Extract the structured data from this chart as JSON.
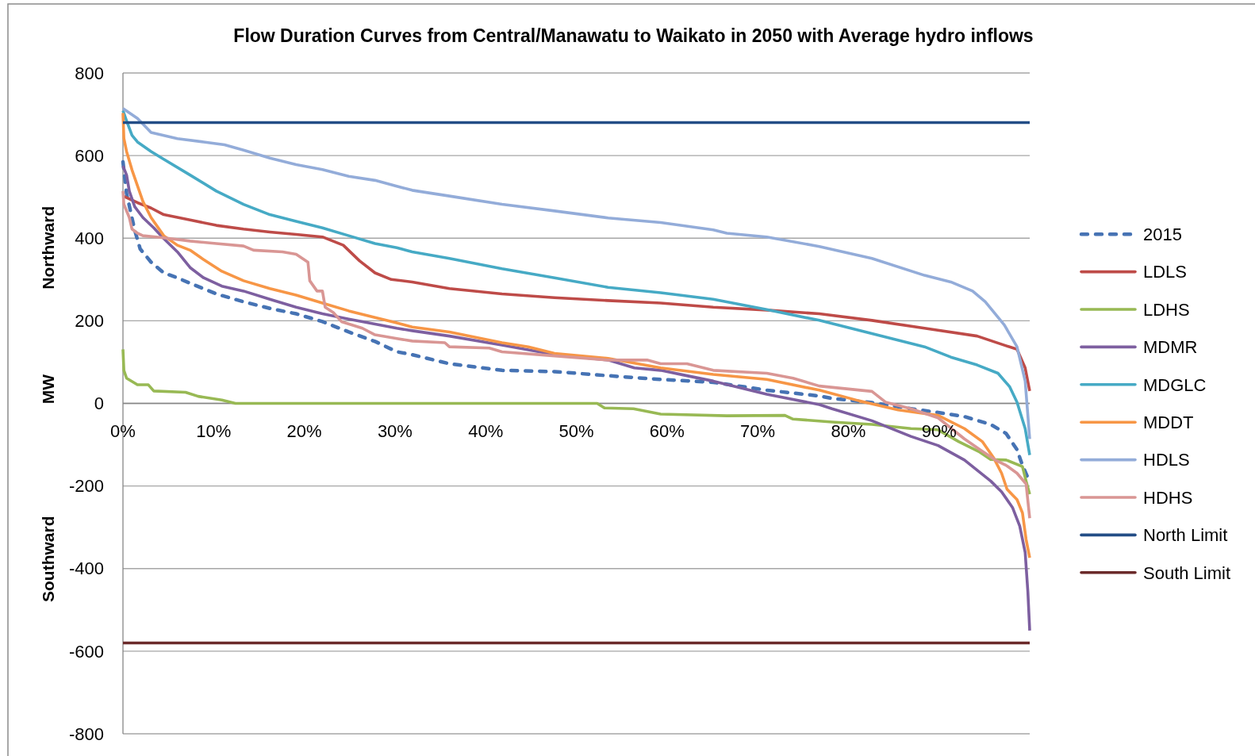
{
  "chart_data": {
    "type": "line",
    "title": "Flow Duration Curves from Central/Manawatu to Waikato in 2050 with Average hydro inflows",
    "ylabel": "MW",
    "annotations": [
      "Northward",
      "Southward"
    ],
    "xlim": [
      0,
      100
    ],
    "xticks": [
      {
        "value": 0,
        "label": "0%"
      },
      {
        "value": 10,
        "label": "10%"
      },
      {
        "value": 20,
        "label": "20%"
      },
      {
        "value": 30,
        "label": "30%"
      },
      {
        "value": 40,
        "label": "40%"
      },
      {
        "value": 50,
        "label": "50%"
      },
      {
        "value": 60,
        "label": "60%"
      },
      {
        "value": 70,
        "label": "70%"
      },
      {
        "value": 80,
        "label": "80%"
      },
      {
        "value": 90,
        "label": "90%"
      }
    ],
    "ylim": [
      -800,
      800
    ],
    "yticks": [
      -800,
      -600,
      -400,
      -200,
      0,
      200,
      400,
      600,
      800
    ],
    "grid": "y",
    "legend": "right",
    "series": [
      {
        "name": "2015",
        "color": "#4673b4",
        "line_style": "dashed",
        "x": [
          0,
          0.4,
          1.3,
          1.9,
          3.1,
          4.5,
          6,
          7.4,
          10.3,
          13.3,
          16.2,
          19.1,
          22,
          24.9,
          27.8,
          30.2,
          31.9,
          36,
          41.8,
          47.6,
          53.5,
          59.3,
          65.1,
          71,
          76.8,
          78.2,
          82.6,
          86.9,
          89.9,
          92.8,
          95.7,
          97.4,
          98.6,
          99.2,
          100
        ],
        "values": [
          585,
          508,
          419,
          374,
          342,
          316,
          304,
          291,
          265,
          246,
          230,
          217,
          198,
          173,
          150,
          125,
          118,
          96,
          80,
          77,
          67,
          58,
          51,
          32,
          18,
          12,
          2,
          -13,
          -22,
          -32,
          -51,
          -73,
          -112,
          -150,
          -190
        ]
      },
      {
        "name": "LDLS",
        "color": "#be4b48",
        "line_style": "solid",
        "x": [
          0,
          0.4,
          1.6,
          3.1,
          4.5,
          7.4,
          10.3,
          13.3,
          16.2,
          19.1,
          22,
          24.3,
          26.1,
          27.8,
          29.6,
          31.9,
          36,
          41.8,
          47.6,
          53.5,
          59.3,
          65.1,
          71,
          76.8,
          82.6,
          88.4,
          94.2,
          97.2,
          98.6,
          99.5,
          100
        ],
        "values": [
          502,
          498,
          486,
          473,
          457,
          444,
          431,
          422,
          415,
          409,
          403,
          383,
          345,
          316,
          300,
          294,
          278,
          265,
          256,
          249,
          243,
          233,
          226,
          217,
          201,
          182,
          163,
          141,
          131,
          86,
          30
        ]
      },
      {
        "name": "LDHS",
        "color": "#98b954",
        "line_style": "solid",
        "x": [
          0,
          0.1,
          0.4,
          1.6,
          2.8,
          3.4,
          6.9,
          8.3,
          10.9,
          12.4,
          52.3,
          53.1,
          56.3,
          59.3,
          66.6,
          73,
          73.9,
          78.2,
          82.6,
          86.9,
          89.9,
          92.2,
          94.5,
          95.7,
          97.4,
          99.2,
          99.6,
          100
        ],
        "values": [
          131,
          80,
          61,
          45,
          45,
          30,
          27,
          17,
          8,
          0,
          0,
          -11,
          -13,
          -26,
          -30,
          -29,
          -38,
          -45,
          -51,
          -61,
          -64,
          -93,
          -118,
          -136,
          -137,
          -153,
          -188,
          -220
        ]
      },
      {
        "name": "MDMR",
        "color": "#7d5fa0",
        "line_style": "solid",
        "x": [
          0,
          0.4,
          0.7,
          1.3,
          2.2,
          3.4,
          4.5,
          6,
          7.4,
          8.9,
          10.9,
          13.3,
          16.2,
          19.1,
          22,
          24.9,
          27.8,
          30.2,
          31.9,
          36,
          41.8,
          47.6,
          53.5,
          56.4,
          59.3,
          62.2,
          65.1,
          71,
          76.8,
          78.2,
          82.6,
          86.9,
          89.9,
          92.8,
          95.7,
          96.9,
          98.1,
          98.9,
          99.5,
          99.8,
          100
        ],
        "values": [
          575,
          553,
          514,
          476,
          450,
          425,
          399,
          367,
          329,
          304,
          284,
          272,
          252,
          233,
          217,
          204,
          192,
          182,
          176,
          163,
          141,
          118,
          105,
          86,
          80,
          67,
          54,
          22,
          -3,
          -13,
          -42,
          -80,
          -102,
          -137,
          -188,
          -214,
          -252,
          -297,
          -361,
          -457,
          -550
        ]
      },
      {
        "name": "MDGLC",
        "color": "#46aac5",
        "line_style": "solid",
        "x": [
          0,
          0.4,
          1,
          1.6,
          3.1,
          4.5,
          7.4,
          10.3,
          13.3,
          16.2,
          19.1,
          22,
          24.9,
          27.8,
          30.2,
          31.9,
          36,
          41.8,
          47.6,
          53.5,
          59.3,
          65.1,
          71,
          76.8,
          82.6,
          88.4,
          91.3,
          94.2,
          96.5,
          97.8,
          98.6,
          99.5,
          100
        ],
        "values": [
          709,
          684,
          649,
          633,
          610,
          591,
          553,
          514,
          482,
          457,
          441,
          425,
          406,
          387,
          377,
          367,
          351,
          326,
          304,
          281,
          268,
          252,
          227,
          201,
          169,
          137,
          112,
          93,
          73,
          40,
          3,
          -61,
          -125
        ]
      },
      {
        "name": "MDDT",
        "color": "#f79646",
        "line_style": "solid",
        "x": [
          0,
          0.1,
          0.4,
          1,
          1.6,
          2.2,
          3.1,
          4.5,
          6,
          7.4,
          8.9,
          10.9,
          13.3,
          16.2,
          19.1,
          22,
          24.9,
          27.8,
          30.2,
          31.9,
          36,
          41.8,
          44.7,
          47.6,
          53.5,
          59.3,
          65.1,
          71,
          76.8,
          81.2,
          85.5,
          89.9,
          92.8,
          94.8,
          96,
          96.9,
          97.5,
          98.6,
          99.2,
          99.6,
          100
        ],
        "values": [
          703,
          642,
          610,
          565,
          527,
          489,
          450,
          406,
          383,
          371,
          348,
          320,
          297,
          278,
          262,
          243,
          224,
          208,
          195,
          185,
          173,
          147,
          137,
          121,
          109,
          86,
          70,
          58,
          32,
          6,
          -16,
          -29,
          -61,
          -93,
          -131,
          -169,
          -208,
          -233,
          -265,
          -329,
          -374
        ]
      },
      {
        "name": "HDLS",
        "color": "#93acd9",
        "line_style": "solid",
        "x": [
          0,
          1.6,
          3.1,
          6,
          8.9,
          11.2,
          13.3,
          16.2,
          19.1,
          22,
          24.9,
          27.8,
          30.2,
          31.9,
          36,
          41.8,
          47.6,
          53.5,
          59.3,
          65.1,
          66.6,
          71,
          76.8,
          82.6,
          88.4,
          91.3,
          93.7,
          95.1,
          97.2,
          98.6,
          99.5,
          100
        ],
        "values": [
          714,
          690,
          656,
          641,
          633,
          626,
          613,
          594,
          578,
          566,
          550,
          540,
          526,
          516,
          502,
          482,
          466,
          449,
          438,
          420,
          412,
          403,
          380,
          351,
          310,
          294,
          272,
          246,
          190,
          137,
          54,
          -86
        ]
      },
      {
        "name": "HDHS",
        "color": "#d99694",
        "line_style": "solid",
        "x": [
          0,
          0.1,
          0.7,
          1,
          1.6,
          2.2,
          4.5,
          7.4,
          10.3,
          13.3,
          14.4,
          17.6,
          19.1,
          20.4,
          20.6,
          21.4,
          22,
          22.3,
          23.2,
          24.1,
          26.4,
          27.8,
          30.2,
          31.9,
          35.5,
          36,
          40.4,
          41.8,
          47.6,
          53.5,
          57.8,
          59.3,
          62.2,
          65.1,
          71,
          73.9,
          76.8,
          82.6,
          84.1,
          86.9,
          89.9,
          92.8,
          94.5,
          96.2,
          97.4,
          98.6,
          99.6,
          100
        ],
        "values": [
          514,
          482,
          450,
          422,
          412,
          406,
          401,
          393,
          387,
          381,
          371,
          367,
          361,
          342,
          297,
          272,
          272,
          233,
          220,
          198,
          182,
          166,
          157,
          151,
          147,
          137,
          134,
          125,
          115,
          105,
          105,
          96,
          96,
          80,
          73,
          61,
          42,
          29,
          3,
          -13,
          -35,
          -86,
          -112,
          -137,
          -150,
          -169,
          -195,
          -278
        ]
      },
      {
        "name": "North Limit",
        "color": "#234d86",
        "line_style": "solid",
        "x": [
          0,
          100
        ],
        "values": [
          680,
          680
        ]
      },
      {
        "name": "South Limit",
        "color": "#6b2a2a",
        "line_style": "solid",
        "x": [
          0,
          100
        ],
        "values": [
          -580,
          -580
        ]
      }
    ]
  }
}
